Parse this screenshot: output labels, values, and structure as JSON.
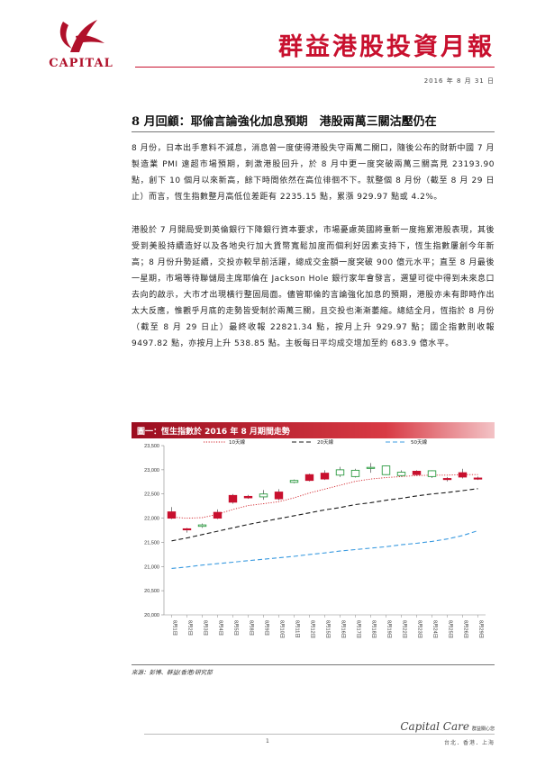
{
  "header": {
    "logo_text": "CAPITAL",
    "brand_title": "群益港股投資月報",
    "date": "2016 年 8 月 31 日"
  },
  "article": {
    "title": "8 月回顧：耶倫言論強化加息預期　港股兩萬三關沽壓仍在",
    "paragraphs": [
      "8 月份，日本出手意料不減息，消息曾一度使得港股失守兩萬二關口，隨後公布的財新中國 7 月製造業 PMI 遠超市場預期，刺激港股回升，於 8 月中更一度突破兩萬三關高見 23193.90 點，創下 10 個月以來新高，餘下時間依然在高位徘徊不下。就整個 8 月份（截至 8 月 29 日止）而言，恆生指數整月高低位差距有 2235.15 點，累漲 929.97 點或 4.2%。",
      "港股於 7 月開局受到英倫銀行下降銀行資本要求，市場憂慮英國將重新一度拖累港股表現，其後受到美股持續造好以及各地央行加大貨幣寬鬆加度而個利好因素支持下，恆生指數屢創今年新高；8 月份升勢延續，交投亦較早前活躍，總成交金額一度突破 900 億元水平；直至 8 月最後一星期，市場等待聯儲局主席耶倫在 Jackson Hole 銀行家年會發言，選望可從中得到未來息口去向的啟示，大市才出現橫行整固局面。儘管耶倫的言論強化加息的預期，港股亦未有即時作出太大反應，惟觀乎月底的走勢皆受制於兩萬三關，且交投也漸漸萎縮。總結全月，恆指於 8 月份（截至 8 月 29 日止）最終收報 22821.34 點，按月上升 929.97 點；國企指數則收報 9497.82 點，亦按月上升 538.85 點。主板每日平均成交增加至約 683.9 億水平。"
    ]
  },
  "chart": {
    "header": "圖一：恆生指數於 2016 年 8 月期間走勢",
    "source": "來源：彭博、群益(香港)研究部"
  },
  "chart_data": {
    "type": "candlestick",
    "title": "圖一：恆生指數於 2016 年 8 月期間走勢",
    "x": [
      "8月1日",
      "8月2日",
      "8月3日",
      "8月4日",
      "8月5日",
      "8月8日",
      "8月9日",
      "8月10日",
      "8月11日",
      "8月12日",
      "8月15日",
      "8月16日",
      "8月17日",
      "8月18日",
      "8月19日",
      "8月22日",
      "8月23日",
      "8月24日",
      "8月25日",
      "8月26日",
      "8月29日"
    ],
    "ylim": [
      20000,
      23500
    ],
    "yticks": [
      20000,
      20500,
      21000,
      21500,
      22000,
      22500,
      23000,
      23500
    ],
    "ytick_labels": [
      "20,000",
      "20,500",
      "21,000",
      "21,500",
      "22,000",
      "22,500",
      "23,000",
      "23,500"
    ],
    "candles": [
      {
        "open": 22000,
        "close": 22130,
        "high": 22230,
        "low": 21980,
        "dir": "down"
      },
      {
        "open": 21780,
        "close": 21760,
        "high": 21800,
        "low": 21700,
        "dir": "down"
      },
      {
        "open": 21830,
        "close": 21860,
        "high": 21890,
        "low": 21800,
        "dir": "up"
      },
      {
        "open": 22000,
        "close": 22120,
        "high": 22180,
        "low": 21980,
        "dir": "down"
      },
      {
        "open": 22330,
        "close": 22470,
        "high": 22500,
        "low": 22300,
        "dir": "down"
      },
      {
        "open": 22420,
        "close": 22450,
        "high": 22480,
        "low": 22400,
        "dir": "down"
      },
      {
        "open": 22440,
        "close": 22500,
        "high": 22580,
        "low": 22380,
        "dir": "up"
      },
      {
        "open": 22400,
        "close": 22540,
        "high": 22600,
        "low": 22370,
        "dir": "down"
      },
      {
        "open": 22740,
        "close": 22780,
        "high": 22800,
        "low": 22720,
        "dir": "up"
      },
      {
        "open": 22780,
        "close": 22900,
        "high": 22920,
        "low": 22760,
        "dir": "down"
      },
      {
        "open": 22810,
        "close": 22930,
        "high": 22990,
        "low": 22790,
        "dir": "down"
      },
      {
        "open": 22890,
        "close": 23000,
        "high": 23060,
        "low": 22850,
        "dir": "up"
      },
      {
        "open": 22860,
        "close": 22990,
        "high": 23020,
        "low": 22840,
        "dir": "up"
      },
      {
        "open": 23040,
        "close": 23050,
        "high": 23140,
        "low": 22940,
        "dir": "up"
      },
      {
        "open": 22900,
        "close": 23080,
        "high": 23090,
        "low": 22890,
        "dir": "up"
      },
      {
        "open": 22880,
        "close": 22950,
        "high": 22990,
        "low": 22860,
        "dir": "up"
      },
      {
        "open": 22900,
        "close": 22970,
        "high": 22990,
        "low": 22880,
        "dir": "down"
      },
      {
        "open": 22860,
        "close": 22980,
        "high": 22990,
        "low": 22830,
        "dir": "up"
      },
      {
        "open": 22800,
        "close": 22820,
        "high": 22850,
        "low": 22760,
        "dir": "down"
      },
      {
        "open": 22850,
        "close": 22940,
        "high": 23020,
        "low": 22820,
        "dir": "down"
      },
      {
        "open": 22810,
        "close": 22830,
        "high": 22860,
        "low": 22790,
        "dir": "down"
      }
    ],
    "series": [
      {
        "name": "10天線",
        "style": "dotted",
        "color": "#d2232a",
        "values": [
          22020,
          22000,
          22010,
          22080,
          22180,
          22260,
          22300,
          22340,
          22420,
          22520,
          22600,
          22680,
          22760,
          22810,
          22840,
          22860,
          22880,
          22890,
          22890,
          22900,
          22900
        ]
      },
      {
        "name": "20天線",
        "style": "dashed",
        "color": "#1a1a1a",
        "values": [
          21530,
          21590,
          21660,
          21730,
          21800,
          21870,
          21930,
          21990,
          22050,
          22110,
          22170,
          22220,
          22280,
          22320,
          22370,
          22410,
          22460,
          22500,
          22530,
          22570,
          22610
        ]
      },
      {
        "name": "50天線",
        "style": "dashed",
        "color": "#3b9be0",
        "values": [
          20960,
          20990,
          21030,
          21060,
          21090,
          21120,
          21150,
          21180,
          21210,
          21250,
          21280,
          21320,
          21350,
          21380,
          21410,
          21450,
          21480,
          21520,
          21570,
          21640,
          21740
        ]
      }
    ],
    "legend": "top",
    "grid": false,
    "colors": {
      "up": "#2e9c43",
      "down": "#c8102e"
    }
  },
  "footer": {
    "brand": "Capital Care",
    "brand_cn": "群益關心您",
    "page": "1",
    "cities": "台北．香港．上海"
  }
}
